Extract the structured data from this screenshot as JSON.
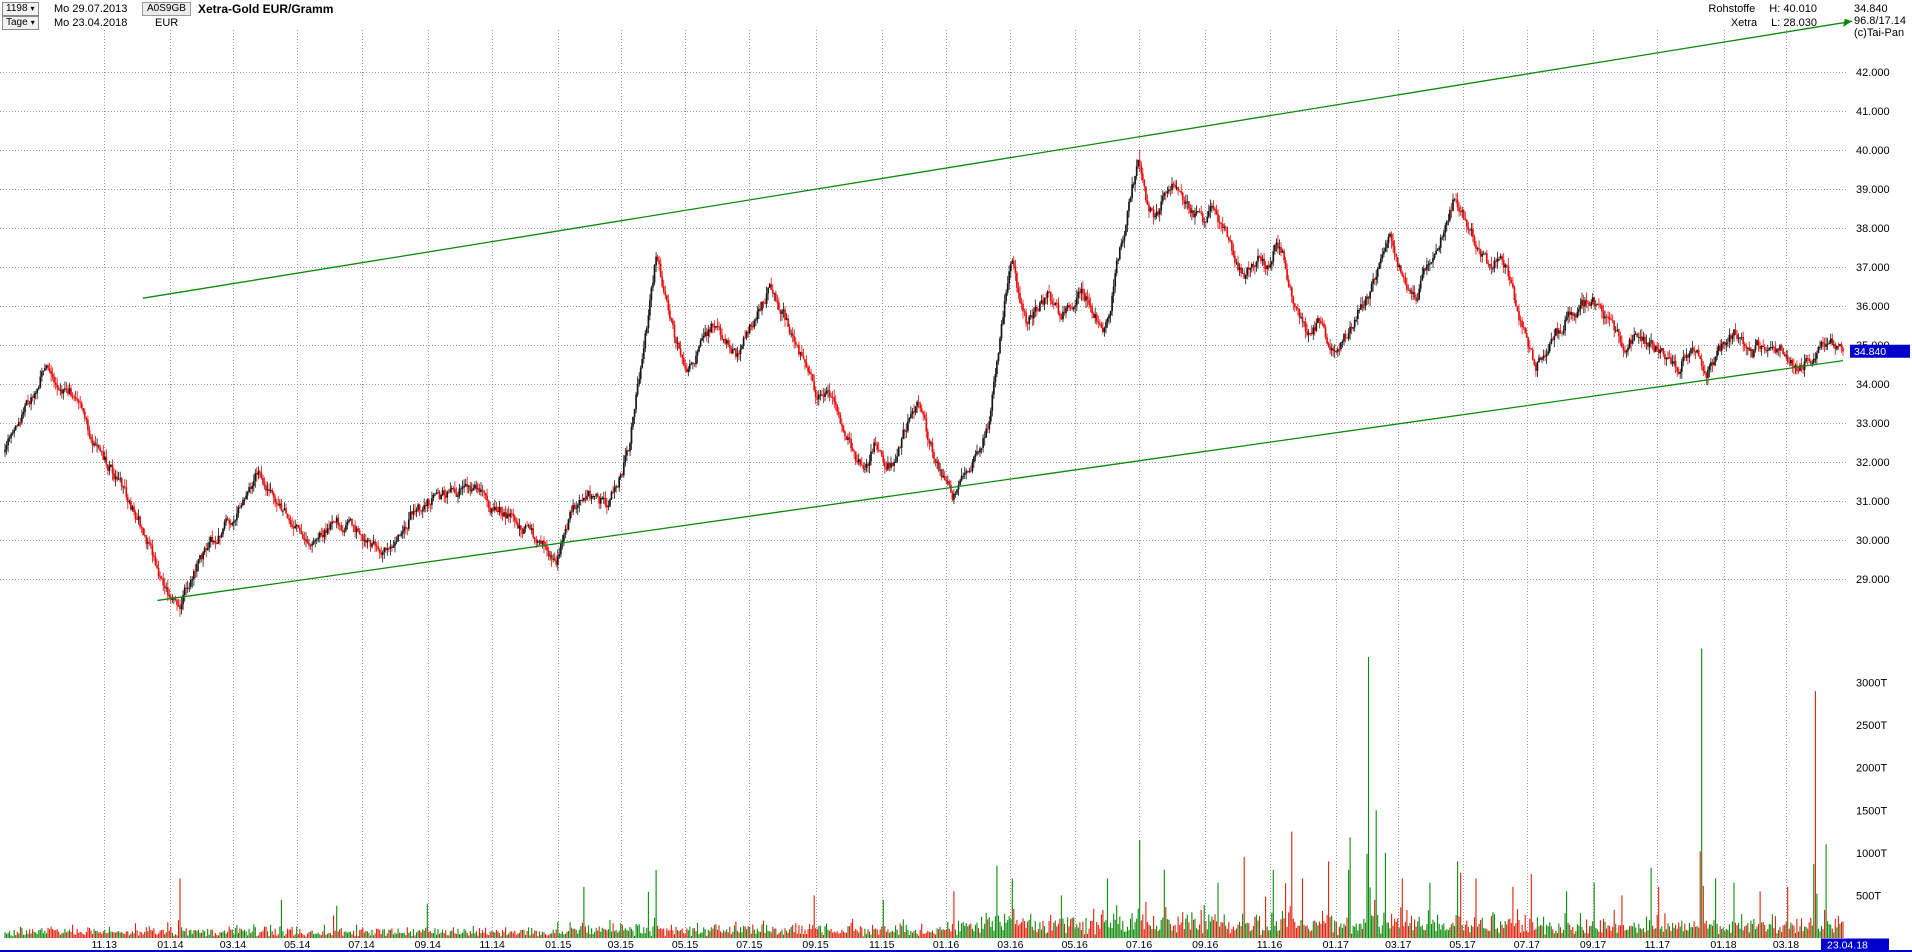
{
  "header": {
    "bars_count": "1198",
    "start_date": "Mo 29.07.2013",
    "symbol": "A0S9GB",
    "period": "Tage",
    "end_date": "Mo 23.04.2018",
    "currency": "EUR",
    "title": "Xetra-Gold EUR/Gramm",
    "exchange_group": "Rohstoffe",
    "exchange": "Xetra",
    "high_label": "H: 40.010",
    "low_label": "L: 28.030",
    "last_price": "34.840",
    "range_info": "96.8/17.14",
    "copyright": "(c)Tai-Pan"
  },
  "icons": {
    "dropdown_arrow": "▾"
  },
  "chart_data": {
    "type": "candlestick+volume",
    "title": "Xetra-Gold EUR/Gramm",
    "period": "Tage",
    "start": "Mo 29.07.2013",
    "end": "Mo 23.04.2018",
    "bars": 1198,
    "high": 40.01,
    "low": 28.03,
    "last": 34.84,
    "last_label": "34.840",
    "price_axis": {
      "min": 29,
      "max": 42,
      "step": 1,
      "labels": [
        "42.000",
        "41.000",
        "40.000",
        "39.000",
        "38.000",
        "37.000",
        "36.000",
        "35.000",
        "34.000",
        "33.000",
        "32.000",
        "31.000",
        "30.000",
        "29.000"
      ]
    },
    "volume_axis": {
      "max": 3500,
      "unit": "T",
      "labels": [
        [
          "3000T",
          3000
        ],
        [
          "2500T",
          2500
        ],
        [
          "2000T",
          2000
        ],
        [
          "1500T",
          1500
        ],
        [
          "1000T",
          1000
        ],
        [
          "500T",
          500
        ]
      ]
    },
    "x_axis": {
      "labels": [
        {
          "text": "11.13",
          "f": 0.054
        },
        {
          "text": "01.14",
          "f": 0.09
        },
        {
          "text": "03.14",
          "f": 0.124
        },
        {
          "text": "05.14",
          "f": 0.159
        },
        {
          "text": "07.14",
          "f": 0.194
        },
        {
          "text": "09.14",
          "f": 0.23
        },
        {
          "text": "11.14",
          "f": 0.265
        },
        {
          "text": "01.15",
          "f": 0.301
        },
        {
          "text": "03.15",
          "f": 0.335
        },
        {
          "text": "05.15",
          "f": 0.37
        },
        {
          "text": "07.15",
          "f": 0.405
        },
        {
          "text": "09.15",
          "f": 0.441
        },
        {
          "text": "11.15",
          "f": 0.477
        },
        {
          "text": "01.16",
          "f": 0.512
        },
        {
          "text": "03.16",
          "f": 0.547
        },
        {
          "text": "05.16",
          "f": 0.582
        },
        {
          "text": "07.16",
          "f": 0.617
        },
        {
          "text": "09.16",
          "f": 0.653
        },
        {
          "text": "11.16",
          "f": 0.688
        },
        {
          "text": "01.17",
          "f": 0.724
        },
        {
          "text": "03.17",
          "f": 0.758
        },
        {
          "text": "05.17",
          "f": 0.793
        },
        {
          "text": "07.17",
          "f": 0.828
        },
        {
          "text": "09.17",
          "f": 0.864
        },
        {
          "text": "11.17",
          "f": 0.899
        },
        {
          "text": "01.18",
          "f": 0.935
        },
        {
          "text": "03.18",
          "f": 0.969
        }
      ],
      "end_label": "23.04.18"
    },
    "trendlines": [
      {
        "f1": 0.075,
        "p1": 36.2,
        "f2": 1.005,
        "p2": 43.3,
        "arrow": true
      },
      {
        "f1": 0.083,
        "p1": 28.45,
        "f2": 1.0,
        "p2": 34.6,
        "arrow": false
      }
    ],
    "price_path": [
      [
        0.0,
        32.4
      ],
      [
        0.01,
        33.2
      ],
      [
        0.022,
        34.5
      ],
      [
        0.03,
        34.0
      ],
      [
        0.04,
        33.6
      ],
      [
        0.05,
        32.3
      ],
      [
        0.058,
        31.8
      ],
      [
        0.063,
        31.4
      ],
      [
        0.072,
        30.6
      ],
      [
        0.08,
        29.6
      ],
      [
        0.088,
        28.7
      ],
      [
        0.095,
        28.25
      ],
      [
        0.1,
        28.9
      ],
      [
        0.108,
        29.6
      ],
      [
        0.115,
        30.1
      ],
      [
        0.125,
        30.7
      ],
      [
        0.132,
        31.3
      ],
      [
        0.138,
        31.7
      ],
      [
        0.148,
        30.9
      ],
      [
        0.158,
        30.3
      ],
      [
        0.168,
        30.0
      ],
      [
        0.178,
        30.5
      ],
      [
        0.188,
        30.3
      ],
      [
        0.198,
        29.9
      ],
      [
        0.205,
        29.6
      ],
      [
        0.213,
        30.1
      ],
      [
        0.222,
        30.7
      ],
      [
        0.23,
        31.0
      ],
      [
        0.243,
        31.2
      ],
      [
        0.255,
        31.3
      ],
      [
        0.264,
        30.9
      ],
      [
        0.274,
        30.6
      ],
      [
        0.285,
        30.2
      ],
      [
        0.293,
        29.9
      ],
      [
        0.3,
        29.5
      ],
      [
        0.306,
        30.4
      ],
      [
        0.313,
        31.2
      ],
      [
        0.321,
        31.1
      ],
      [
        0.328,
        30.9
      ],
      [
        0.335,
        31.6
      ],
      [
        0.34,
        32.5
      ],
      [
        0.345,
        34.2
      ],
      [
        0.35,
        35.8
      ],
      [
        0.354,
        37.2
      ],
      [
        0.358,
        36.5
      ],
      [
        0.363,
        35.4
      ],
      [
        0.368,
        34.6
      ],
      [
        0.373,
        34.4
      ],
      [
        0.38,
        35.1
      ],
      [
        0.386,
        35.6
      ],
      [
        0.392,
        35.2
      ],
      [
        0.398,
        34.7
      ],
      [
        0.404,
        35.3
      ],
      [
        0.41,
        35.9
      ],
      [
        0.416,
        36.4
      ],
      [
        0.42,
        36.1
      ],
      [
        0.426,
        35.5
      ],
      [
        0.432,
        34.8
      ],
      [
        0.437,
        34.3
      ],
      [
        0.442,
        33.6
      ],
      [
        0.447,
        33.9
      ],
      [
        0.452,
        33.5
      ],
      [
        0.458,
        32.6
      ],
      [
        0.464,
        32.0
      ],
      [
        0.468,
        31.8
      ],
      [
        0.473,
        32.4
      ],
      [
        0.478,
        32.1
      ],
      [
        0.483,
        31.9
      ],
      [
        0.488,
        32.6
      ],
      [
        0.492,
        33.2
      ],
      [
        0.496,
        33.5
      ],
      [
        0.5,
        33.0
      ],
      [
        0.504,
        32.4
      ],
      [
        0.508,
        31.9
      ],
      [
        0.512,
        31.4
      ],
      [
        0.516,
        31.05
      ],
      [
        0.52,
        31.7
      ],
      [
        0.525,
        31.9
      ],
      [
        0.53,
        32.3
      ],
      [
        0.535,
        33.0
      ],
      [
        0.54,
        34.6
      ],
      [
        0.544,
        36.2
      ],
      [
        0.548,
        37.2
      ],
      [
        0.552,
        36.2
      ],
      [
        0.556,
        35.6
      ],
      [
        0.562,
        36.0
      ],
      [
        0.568,
        36.3
      ],
      [
        0.574,
        35.7
      ],
      [
        0.58,
        36.1
      ],
      [
        0.586,
        36.4
      ],
      [
        0.592,
        35.9
      ],
      [
        0.597,
        35.4
      ],
      [
        0.602,
        36.2
      ],
      [
        0.606,
        37.3
      ],
      [
        0.61,
        38.2
      ],
      [
        0.613,
        39.0
      ],
      [
        0.617,
        39.8
      ],
      [
        0.621,
        38.7
      ],
      [
        0.626,
        38.3
      ],
      [
        0.631,
        38.8
      ],
      [
        0.636,
        39.2
      ],
      [
        0.641,
        38.8
      ],
      [
        0.646,
        38.4
      ],
      [
        0.652,
        38.2
      ],
      [
        0.657,
        38.5
      ],
      [
        0.662,
        38.1
      ],
      [
        0.666,
        37.6
      ],
      [
        0.67,
        37.2
      ],
      [
        0.674,
        36.7
      ],
      [
        0.678,
        37.0
      ],
      [
        0.683,
        37.3
      ],
      [
        0.688,
        37.0
      ],
      [
        0.692,
        37.6
      ],
      [
        0.696,
        37.2
      ],
      [
        0.7,
        36.3
      ],
      [
        0.705,
        35.7
      ],
      [
        0.71,
        35.2
      ],
      [
        0.715,
        35.6
      ],
      [
        0.72,
        35.1
      ],
      [
        0.725,
        34.85
      ],
      [
        0.73,
        35.3
      ],
      [
        0.736,
        35.8
      ],
      [
        0.742,
        36.3
      ],
      [
        0.748,
        37.1
      ],
      [
        0.753,
        37.8
      ],
      [
        0.758,
        37.1
      ],
      [
        0.763,
        36.6
      ],
      [
        0.768,
        36.3
      ],
      [
        0.773,
        36.9
      ],
      [
        0.778,
        37.3
      ],
      [
        0.783,
        38.0
      ],
      [
        0.789,
        38.8
      ],
      [
        0.794,
        38.2
      ],
      [
        0.799,
        37.7
      ],
      [
        0.804,
        37.3
      ],
      [
        0.809,
        36.9
      ],
      [
        0.814,
        37.3
      ],
      [
        0.819,
        36.6
      ],
      [
        0.824,
        35.6
      ],
      [
        0.829,
        34.9
      ],
      [
        0.833,
        34.5
      ],
      [
        0.838,
        34.9
      ],
      [
        0.844,
        35.3
      ],
      [
        0.85,
        35.7
      ],
      [
        0.856,
        35.9
      ],
      [
        0.862,
        36.2
      ],
      [
        0.866,
        36.0
      ],
      [
        0.871,
        35.7
      ],
      [
        0.877,
        35.2
      ],
      [
        0.883,
        35.0
      ],
      [
        0.888,
        35.3
      ],
      [
        0.893,
        35.1
      ],
      [
        0.898,
        34.9
      ],
      [
        0.904,
        34.6
      ],
      [
        0.91,
        34.4
      ],
      [
        0.915,
        34.8
      ],
      [
        0.92,
        34.9
      ],
      [
        0.925,
        34.2
      ],
      [
        0.93,
        34.6
      ],
      [
        0.936,
        35.1
      ],
      [
        0.941,
        35.4
      ],
      [
        0.946,
        35.1
      ],
      [
        0.951,
        34.8
      ],
      [
        0.956,
        35.1
      ],
      [
        0.961,
        34.8
      ],
      [
        0.966,
        34.9
      ],
      [
        0.971,
        34.6
      ],
      [
        0.976,
        34.35
      ],
      [
        0.981,
        34.6
      ],
      [
        0.986,
        34.9
      ],
      [
        0.991,
        35.15
      ],
      [
        0.996,
        34.95
      ],
      [
        1.0,
        34.84
      ]
    ],
    "volume_spikes": [
      [
        0.095,
        700,
        "d"
      ],
      [
        0.15,
        450,
        "u"
      ],
      [
        0.23,
        400,
        "u"
      ],
      [
        0.315,
        600,
        "u"
      ],
      [
        0.354,
        800,
        "u"
      ],
      [
        0.44,
        500,
        "d"
      ],
      [
        0.478,
        450,
        "u"
      ],
      [
        0.516,
        550,
        "d"
      ],
      [
        0.54,
        850,
        "u"
      ],
      [
        0.548,
        700,
        "u"
      ],
      [
        0.575,
        500,
        "u"
      ],
      [
        0.6,
        700,
        "u"
      ],
      [
        0.617,
        1150,
        "u"
      ],
      [
        0.631,
        800,
        "u"
      ],
      [
        0.66,
        650,
        "u"
      ],
      [
        0.674,
        950,
        "d"
      ],
      [
        0.69,
        800,
        "u"
      ],
      [
        0.7,
        1250,
        "d"
      ],
      [
        0.706,
        700,
        "d"
      ],
      [
        0.72,
        900,
        "d"
      ],
      [
        0.731,
        800,
        "u"
      ],
      [
        0.742,
        3300,
        "u"
      ],
      [
        0.746,
        1500,
        "u"
      ],
      [
        0.751,
        1000,
        "u"
      ],
      [
        0.76,
        700,
        "d"
      ],
      [
        0.775,
        650,
        "u"
      ],
      [
        0.79,
        900,
        "u"
      ],
      [
        0.8,
        700,
        "d"
      ],
      [
        0.82,
        600,
        "d"
      ],
      [
        0.83,
        750,
        "d"
      ],
      [
        0.85,
        550,
        "u"
      ],
      [
        0.865,
        650,
        "u"
      ],
      [
        0.88,
        500,
        "d"
      ],
      [
        0.9,
        600,
        "d"
      ],
      [
        0.923,
        3400,
        "u"
      ],
      [
        0.931,
        700,
        "u"
      ],
      [
        0.941,
        650,
        "u"
      ],
      [
        0.955,
        550,
        "d"
      ],
      [
        0.97,
        600,
        "d"
      ],
      [
        0.985,
        2900,
        "d"
      ],
      [
        0.991,
        1100,
        "u"
      ]
    ],
    "colors": {
      "up": "#161616",
      "down": "#e80d0d",
      "vol_up": "#0c8a0c",
      "vol_down": "#e0200c",
      "trend": "#0c8a0c",
      "grid": "#9a9a9a",
      "marker_bg": "#0000cd",
      "marker_fg": "#ffffff"
    },
    "legend_position": "none",
    "grid": true
  }
}
